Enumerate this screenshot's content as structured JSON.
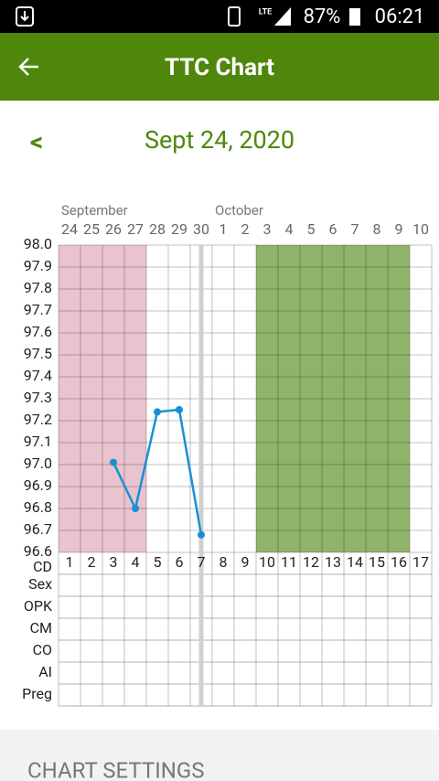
{
  "status_bar": {
    "network": "LTE",
    "battery": "87%",
    "time": "06:21"
  },
  "app_bar": {
    "title": "TTC Chart"
  },
  "date_nav": {
    "prev": "<",
    "date": "Sept 24, 2020"
  },
  "chart_data": {
    "type": "line",
    "month_labels": [
      "September",
      null,
      null,
      null,
      null,
      null,
      null,
      "October",
      null,
      null,
      null,
      null,
      null,
      null,
      null,
      null,
      null
    ],
    "dates": [
      24,
      25,
      26,
      27,
      28,
      29,
      30,
      1,
      2,
      3,
      4,
      5,
      6,
      7,
      8,
      9,
      10
    ],
    "x_label": "CD",
    "x": [
      1,
      2,
      3,
      4,
      5,
      6,
      7,
      8,
      9,
      10,
      11,
      12,
      13,
      14,
      15,
      16,
      17
    ],
    "values": [
      null,
      null,
      97.01,
      96.8,
      97.24,
      97.25,
      96.68,
      null,
      null,
      null,
      null,
      null,
      null,
      null,
      null,
      null,
      null
    ],
    "color": "#1a8fd6",
    "ylim": [
      96.6,
      98.0
    ],
    "yticks": [
      {
        "value": 96.6,
        "label": "96.6"
      },
      {
        "value": 96.7,
        "label": "96.7"
      },
      {
        "value": 96.8,
        "label": "96.8"
      },
      {
        "value": 96.9,
        "label": "96.9"
      },
      {
        "value": 97,
        "label": "97.0"
      },
      {
        "value": 97.1,
        "label": "97.1"
      },
      {
        "value": 97.2,
        "label": "97.2"
      },
      {
        "value": 97.3,
        "label": "97.3"
      },
      {
        "value": 97.4,
        "label": "97.4"
      },
      {
        "value": 97.5,
        "label": "97.5"
      },
      {
        "value": 97.6,
        "label": "97.6"
      },
      {
        "value": 97.7,
        "label": "97.7"
      },
      {
        "value": 97.8,
        "label": "97.8"
      },
      {
        "value": 97.9,
        "label": "97.9"
      },
      {
        "value": 98,
        "label": "98.0"
      }
    ],
    "grid": true,
    "ranges": [
      {
        "from": 1,
        "to": 4,
        "color": "#e9c3cd"
      },
      {
        "from": 10,
        "to": 16,
        "color": "#8fb368"
      }
    ],
    "today": 7,
    "rows": [
      "Sex",
      "OPK",
      "CM",
      "CO",
      "AI",
      "Preg"
    ]
  },
  "settings_title": "CHART SETTINGS"
}
